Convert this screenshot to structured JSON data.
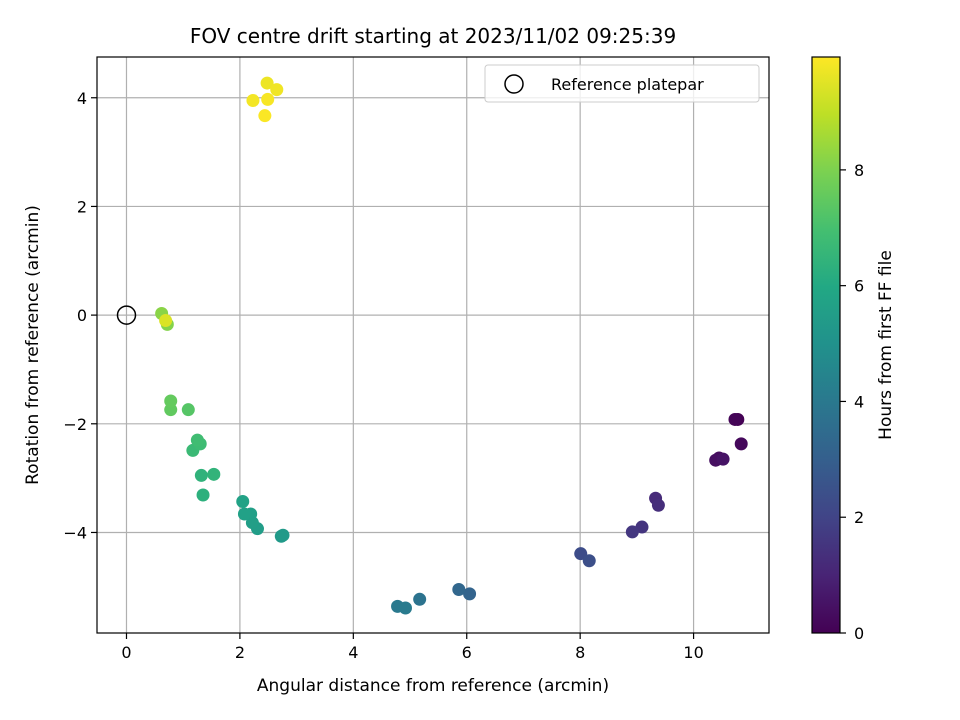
{
  "chart_data": {
    "type": "scatter",
    "title": "FOV centre drift starting at 2023/11/02 09:25:39",
    "xlabel": "Angular distance from reference (arcmin)",
    "ylabel": "Rotation from reference (arcmin)",
    "xlim": [
      -0.52,
      11.33
    ],
    "ylim": [
      -5.85,
      4.75
    ],
    "xticks": [
      0,
      2,
      4,
      6,
      8,
      10
    ],
    "yticks": [
      -4,
      -2,
      0,
      2,
      4
    ],
    "xtick_labels": [
      "0",
      "2",
      "4",
      "6",
      "8",
      "10"
    ],
    "ytick_labels": [
      "−4",
      "−2",
      "0",
      "2",
      "4"
    ],
    "grid": true,
    "legend": {
      "position": "top-right",
      "entries": [
        "Reference platepar"
      ]
    },
    "reference_point": {
      "x": 0,
      "y": 0,
      "label": "Reference platepar"
    },
    "colorbar": {
      "label": "Hours from first FF file",
      "range": [
        0,
        9.95
      ],
      "ticks": [
        0,
        2,
        4,
        6,
        8
      ],
      "tick_labels": [
        "0",
        "2",
        "4",
        "6",
        "8"
      ],
      "colormap": "viridis"
    },
    "points": [
      {
        "x": 10.78,
        "y": -1.92,
        "t": 0.0
      },
      {
        "x": 10.73,
        "y": -1.92,
        "t": 0.1
      },
      {
        "x": 10.84,
        "y": -2.37,
        "t": 0.2
      },
      {
        "x": 10.45,
        "y": -2.63,
        "t": 0.3
      },
      {
        "x": 10.39,
        "y": -2.67,
        "t": 0.4
      },
      {
        "x": 10.52,
        "y": -2.65,
        "t": 0.5
      },
      {
        "x": 9.33,
        "y": -3.37,
        "t": 1.2
      },
      {
        "x": 9.38,
        "y": -3.5,
        "t": 1.3
      },
      {
        "x": 9.09,
        "y": -3.9,
        "t": 1.5
      },
      {
        "x": 8.92,
        "y": -3.99,
        "t": 1.6
      },
      {
        "x": 8.01,
        "y": -4.39,
        "t": 2.3
      },
      {
        "x": 8.16,
        "y": -4.52,
        "t": 2.4
      },
      {
        "x": 6.05,
        "y": -5.13,
        "t": 3.2
      },
      {
        "x": 5.86,
        "y": -5.05,
        "t": 3.3
      },
      {
        "x": 5.17,
        "y": -5.23,
        "t": 3.8
      },
      {
        "x": 4.78,
        "y": -5.36,
        "t": 4.0
      },
      {
        "x": 4.92,
        "y": -5.39,
        "t": 4.1
      },
      {
        "x": 2.73,
        "y": -4.07,
        "t": 5.3
      },
      {
        "x": 2.76,
        "y": -4.05,
        "t": 5.35
      },
      {
        "x": 2.31,
        "y": -3.93,
        "t": 5.5
      },
      {
        "x": 2.22,
        "y": -3.82,
        "t": 5.55
      },
      {
        "x": 2.19,
        "y": -3.66,
        "t": 5.6
      },
      {
        "x": 2.08,
        "y": -3.66,
        "t": 5.65
      },
      {
        "x": 2.05,
        "y": -3.43,
        "t": 5.7
      },
      {
        "x": 1.35,
        "y": -3.31,
        "t": 6.3
      },
      {
        "x": 1.32,
        "y": -2.95,
        "t": 6.4
      },
      {
        "x": 1.54,
        "y": -2.93,
        "t": 6.45
      },
      {
        "x": 1.17,
        "y": -2.49,
        "t": 6.7
      },
      {
        "x": 1.3,
        "y": -2.37,
        "t": 6.8
      },
      {
        "x": 1.25,
        "y": -2.3,
        "t": 6.85
      },
      {
        "x": 1.09,
        "y": -1.74,
        "t": 7.3
      },
      {
        "x": 0.78,
        "y": -1.74,
        "t": 7.5
      },
      {
        "x": 0.78,
        "y": -1.58,
        "t": 7.55
      },
      {
        "x": 0.72,
        "y": -0.17,
        "t": 8.1
      },
      {
        "x": 0.62,
        "y": 0.03,
        "t": 8.2
      },
      {
        "x": 0.69,
        "y": -0.1,
        "t": 9.4
      },
      {
        "x": 2.48,
        "y": 4.27,
        "t": 9.7
      },
      {
        "x": 2.65,
        "y": 4.15,
        "t": 9.75
      },
      {
        "x": 2.23,
        "y": 3.95,
        "t": 9.8
      },
      {
        "x": 2.49,
        "y": 3.97,
        "t": 9.85
      },
      {
        "x": 2.44,
        "y": 3.67,
        "t": 9.9
      }
    ]
  }
}
